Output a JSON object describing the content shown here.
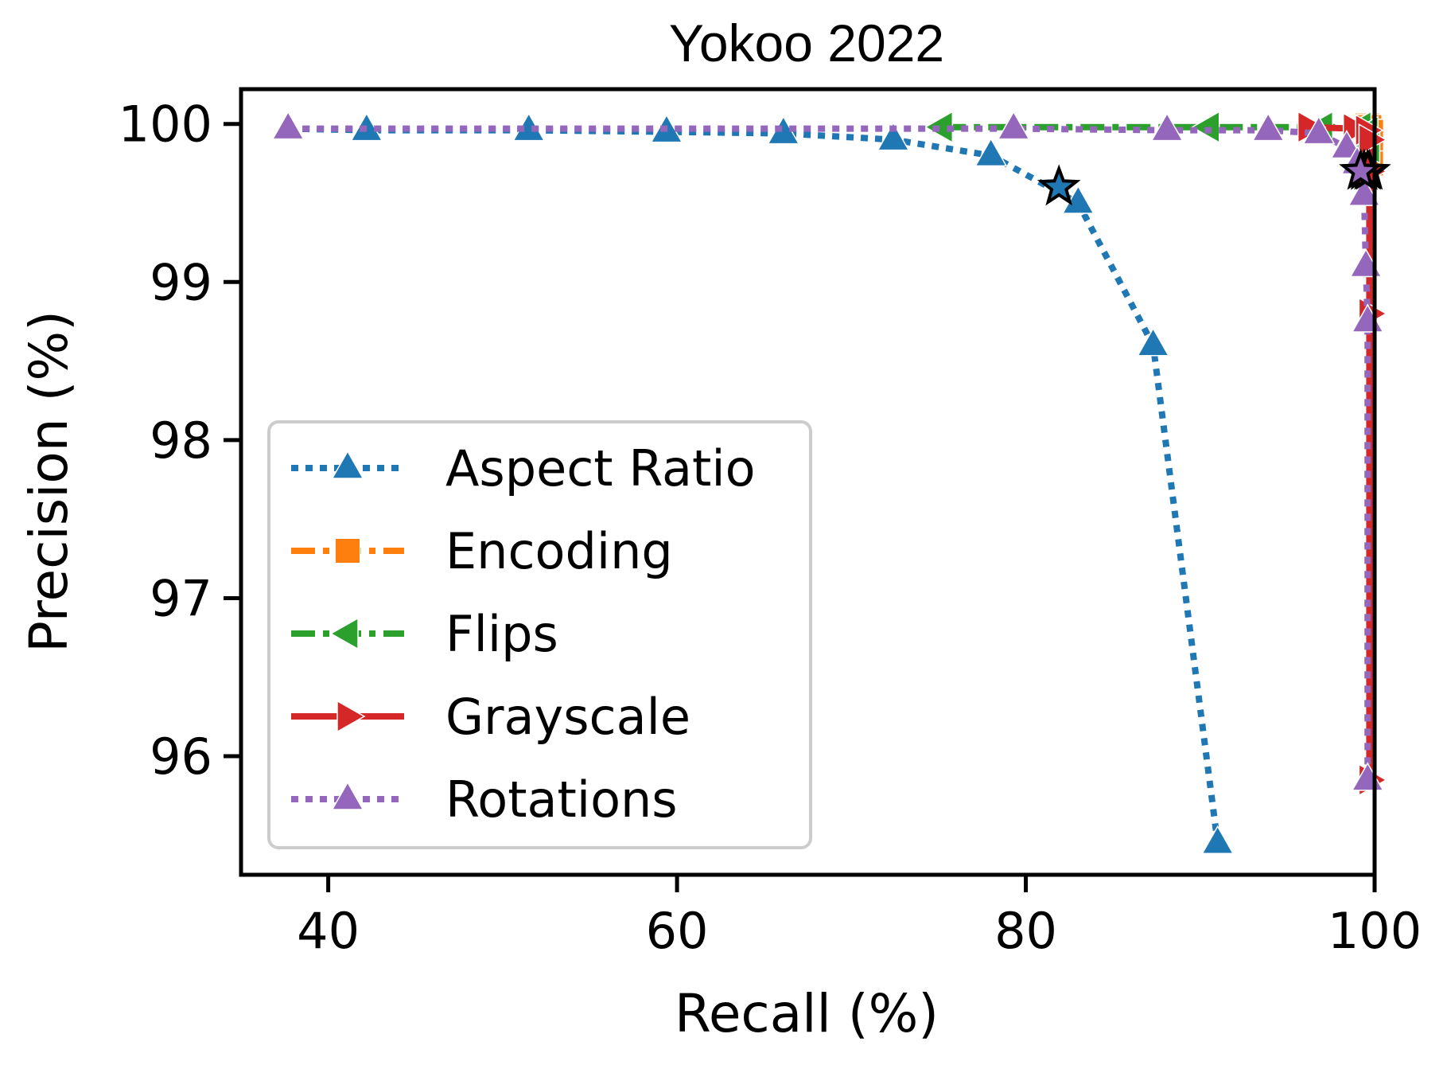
{
  "chart_data": {
    "type": "line",
    "title": "Yokoo 2022",
    "xlabel": "Recall (%)",
    "ylabel": "Precision (%)",
    "xlim": [
      35,
      100
    ],
    "ylim": [
      95.25,
      100.22
    ],
    "xticks": [
      40,
      60,
      80,
      100
    ],
    "yticks": [
      96,
      97,
      98,
      99,
      100
    ],
    "grid": false,
    "legend": "lower-left",
    "series": [
      {
        "name": "Aspect Ratio",
        "color": "#1f77b4",
        "linestyle": "dotted",
        "marker": "triangle-up",
        "x": [
          37.7,
          42.2,
          51.5,
          59.4,
          66.1,
          72.4,
          78.0,
          83.0,
          87.3,
          91.0
        ],
        "y": [
          99.97,
          99.96,
          99.96,
          99.95,
          99.94,
          99.9,
          99.8,
          99.5,
          98.6,
          95.45
        ],
        "highlight": {
          "x": 81.9,
          "y": 99.6
        }
      },
      {
        "name": "Encoding",
        "color": "#ff7f0e",
        "linestyle": "dashdot",
        "marker": "square",
        "x": [
          99.6,
          99.7,
          99.8,
          99.8,
          99.8
        ],
        "y": [
          99.99,
          99.98,
          99.95,
          99.88,
          99.75
        ],
        "highlight": {
          "x": 99.7,
          "y": 99.7
        }
      },
      {
        "name": "Flips",
        "color": "#2ca02c",
        "linestyle": "dashdot",
        "marker": "triangle-left",
        "x": [
          75.2,
          90.5,
          97.0,
          99.2,
          99.6,
          99.7
        ],
        "y": [
          99.98,
          99.98,
          99.98,
          99.98,
          99.95,
          99.85
        ],
        "highlight": {
          "x": 99.4,
          "y": 99.7
        }
      },
      {
        "name": "Grayscale",
        "color": "#d62728",
        "linestyle": "solid",
        "marker": "triangle-right",
        "x": [
          96.2,
          98.8,
          99.5,
          99.7,
          99.7,
          99.7,
          99.7
        ],
        "y": [
          99.98,
          99.97,
          99.96,
          99.9,
          99.7,
          98.8,
          95.85
        ],
        "highlight": {
          "x": 99.6,
          "y": 99.7
        }
      },
      {
        "name": "Rotations",
        "color": "#9467bd",
        "linestyle": "dotted",
        "marker": "triangle-up",
        "x": [
          37.7,
          79.3,
          88.1,
          93.9,
          96.8,
          98.4,
          99.0,
          99.4,
          99.5,
          99.6,
          99.6
        ],
        "y": [
          99.97,
          99.97,
          99.96,
          99.96,
          99.94,
          99.85,
          99.75,
          99.55,
          99.1,
          98.75,
          95.85
        ],
        "highlight": {
          "x": 99.2,
          "y": 99.7
        }
      }
    ]
  }
}
